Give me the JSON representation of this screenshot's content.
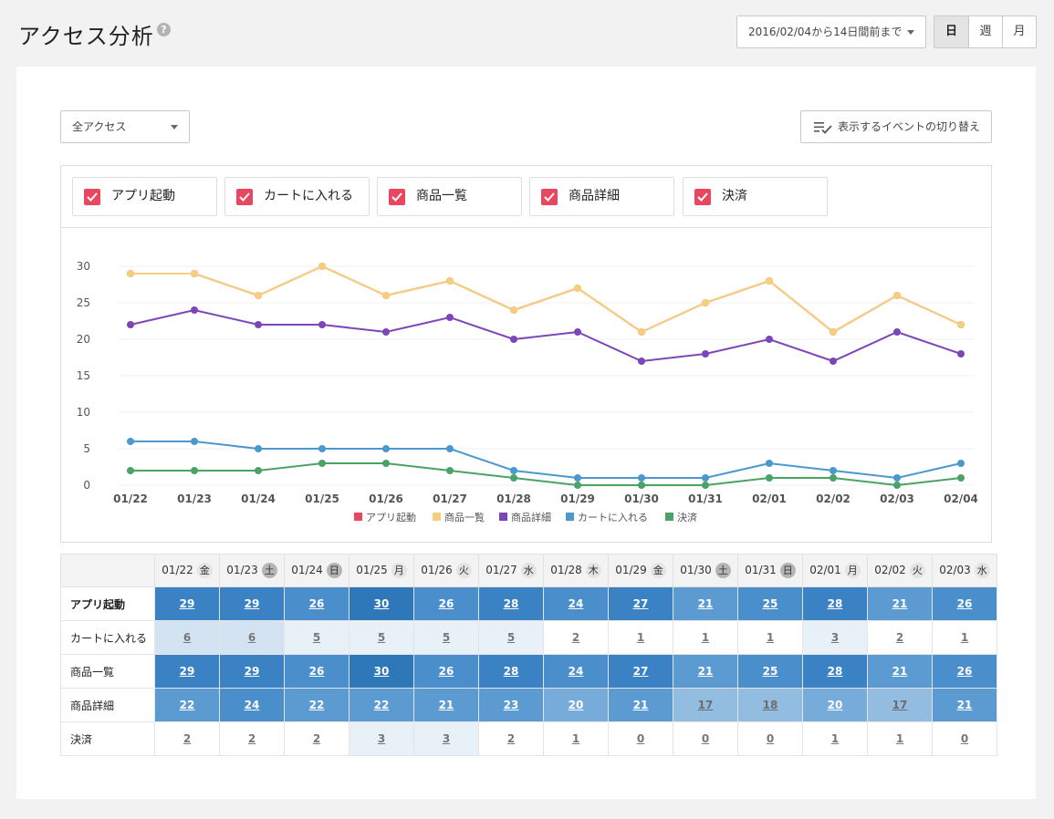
{
  "page": {
    "title": "アクセス分析",
    "help_icon": "?"
  },
  "header": {
    "date_range": "2016/02/04から14日間前まで",
    "periods": [
      {
        "label": "日",
        "active": true
      },
      {
        "label": "週",
        "active": false
      },
      {
        "label": "月",
        "active": false
      }
    ]
  },
  "filter": {
    "selected": "全アクセス"
  },
  "event_toggle": {
    "label": "表示するイベントの切り替え"
  },
  "series_toggles": [
    "アプリ起動",
    "カートに入れる",
    "商品一覧",
    "商品詳細",
    "決済"
  ],
  "colors": {
    "app_launch": "#e8475f",
    "cart": "#4a98cf",
    "list": "#f6cf7e",
    "detail": "#7d45b8",
    "payment": "#4aa364",
    "checkbox": "#e8475f"
  },
  "chart_data": {
    "type": "line",
    "categories": [
      "01/22",
      "01/23",
      "01/24",
      "01/25",
      "01/26",
      "01/27",
      "01/28",
      "01/29",
      "01/30",
      "01/31",
      "02/01",
      "02/02",
      "02/03",
      "02/04"
    ],
    "ylim": [
      0,
      30
    ],
    "yticks": [
      0,
      5,
      10,
      15,
      20,
      25,
      30
    ],
    "legend_position": "bottom",
    "series": [
      {
        "name": "アプリ起動",
        "color": "#e8475f",
        "values": [
          29,
          29,
          26,
          30,
          26,
          28,
          24,
          27,
          21,
          25,
          28,
          21,
          26,
          22
        ]
      },
      {
        "name": "商品一覧",
        "color": "#f6cf7e",
        "values": [
          29,
          29,
          26,
          30,
          26,
          28,
          24,
          27,
          21,
          25,
          28,
          21,
          26,
          22
        ]
      },
      {
        "name": "商品詳細",
        "color": "#7d45b8",
        "values": [
          22,
          24,
          22,
          22,
          21,
          23,
          20,
          21,
          17,
          18,
          20,
          17,
          21,
          18
        ]
      },
      {
        "name": "カートに入れる",
        "color": "#4a98cf",
        "values": [
          6,
          6,
          5,
          5,
          5,
          5,
          2,
          1,
          1,
          1,
          3,
          2,
          1,
          3
        ]
      },
      {
        "name": "決済",
        "color": "#4aa364",
        "values": [
          2,
          2,
          2,
          3,
          3,
          2,
          1,
          0,
          0,
          0,
          1,
          1,
          0,
          1
        ]
      }
    ]
  },
  "table": {
    "columns": [
      {
        "date": "01/22",
        "dow": "金",
        "kind": "wd"
      },
      {
        "date": "01/23",
        "dow": "土",
        "kind": "sat"
      },
      {
        "date": "01/24",
        "dow": "日",
        "kind": "sun"
      },
      {
        "date": "01/25",
        "dow": "月",
        "kind": "wd"
      },
      {
        "date": "01/26",
        "dow": "火",
        "kind": "wd"
      },
      {
        "date": "01/27",
        "dow": "水",
        "kind": "wd"
      },
      {
        "date": "01/28",
        "dow": "木",
        "kind": "wd"
      },
      {
        "date": "01/29",
        "dow": "金",
        "kind": "wd"
      },
      {
        "date": "01/30",
        "dow": "土",
        "kind": "sat"
      },
      {
        "date": "01/31",
        "dow": "日",
        "kind": "sun"
      },
      {
        "date": "02/01",
        "dow": "月",
        "kind": "wd"
      },
      {
        "date": "02/02",
        "dow": "火",
        "kind": "wd"
      },
      {
        "date": "02/03",
        "dow": "水",
        "kind": "wd"
      }
    ],
    "rows": [
      {
        "label": "アプリ起動",
        "bold": true,
        "values": [
          29,
          29,
          26,
          30,
          26,
          28,
          24,
          27,
          21,
          25,
          28,
          21,
          26
        ]
      },
      {
        "label": "カートに入れる",
        "bold": false,
        "values": [
          6,
          6,
          5,
          5,
          5,
          5,
          2,
          1,
          1,
          1,
          3,
          2,
          1
        ]
      },
      {
        "label": "商品一覧",
        "bold": false,
        "values": [
          29,
          29,
          26,
          30,
          26,
          28,
          24,
          27,
          21,
          25,
          28,
          21,
          26
        ]
      },
      {
        "label": "商品詳細",
        "bold": false,
        "values": [
          22,
          24,
          22,
          22,
          21,
          23,
          20,
          21,
          17,
          18,
          20,
          17,
          21
        ]
      },
      {
        "label": "決済",
        "bold": false,
        "values": [
          2,
          2,
          2,
          3,
          3,
          2,
          1,
          0,
          0,
          0,
          1,
          1,
          0
        ]
      }
    ]
  }
}
